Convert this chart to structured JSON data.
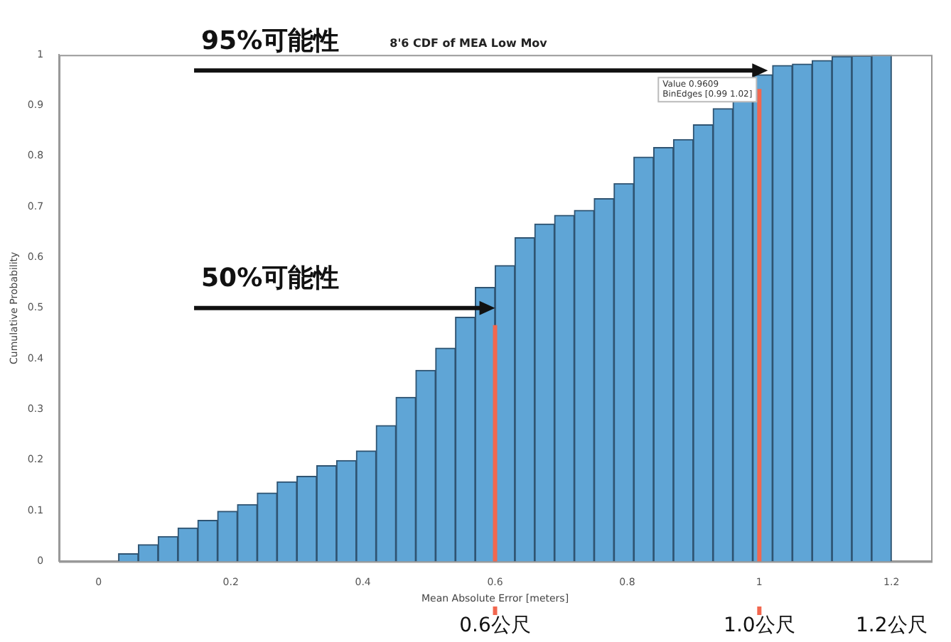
{
  "chart_data": {
    "type": "histogram",
    "title": "8'6 CDF of MEA Low Mov",
    "xlabel": "Mean Absolute Error [meters]",
    "ylabel": "Cumulative Probability",
    "bins": [
      0.03,
      0.06,
      0.09,
      0.12,
      0.15,
      0.18,
      0.21,
      0.24,
      0.27,
      0.3,
      0.33,
      0.36,
      0.39,
      0.42,
      0.45,
      0.48,
      0.51,
      0.54,
      0.57,
      0.6,
      0.63,
      0.66,
      0.69,
      0.72,
      0.75,
      0.78,
      0.81,
      0.84,
      0.87,
      0.9,
      0.93,
      0.96,
      0.99,
      1.02,
      1.05,
      1.08,
      1.11,
      1.14,
      1.17,
      1.2
    ],
    "values": [
      0.015,
      0.033,
      0.049,
      0.066,
      0.081,
      0.099,
      0.112,
      0.135,
      0.157,
      0.168,
      0.189,
      0.199,
      0.218,
      0.268,
      0.324,
      0.377,
      0.421,
      0.482,
      0.541,
      0.584,
      0.639,
      0.666,
      0.683,
      0.693,
      0.716,
      0.746,
      0.798,
      0.817,
      0.833,
      0.862,
      0.894,
      0.911,
      0.9609,
      0.979,
      0.982,
      0.989,
      0.997,
      0.998,
      1.0
    ],
    "color": "#5fa5d6",
    "xlim": [
      -0.06,
      1.26
    ],
    "xticks": [
      0,
      0.2,
      0.4,
      0.6,
      0.8,
      1,
      1.2
    ],
    "ylim": [
      0,
      1
    ],
    "yticks": [
      0,
      0.1,
      0.2,
      0.3,
      0.4,
      0.5,
      0.6,
      0.7,
      0.8,
      0.9,
      1
    ],
    "ref_lines": [
      {
        "axis": "x",
        "value": 0.6,
        "color": "#f2674f"
      },
      {
        "axis": "x",
        "value": 1.0,
        "color": "#f2674f"
      }
    ],
    "annotations": [
      "95%可能性",
      {
        "text": "50%可能性",
        "x": 0.6,
        "y": 0.5
      },
      "0.6公尺",
      "1.0公尺",
      "1.2公尺",
      "Value 0.9609",
      "BinEdges [0.99 1.02]"
    ]
  }
}
